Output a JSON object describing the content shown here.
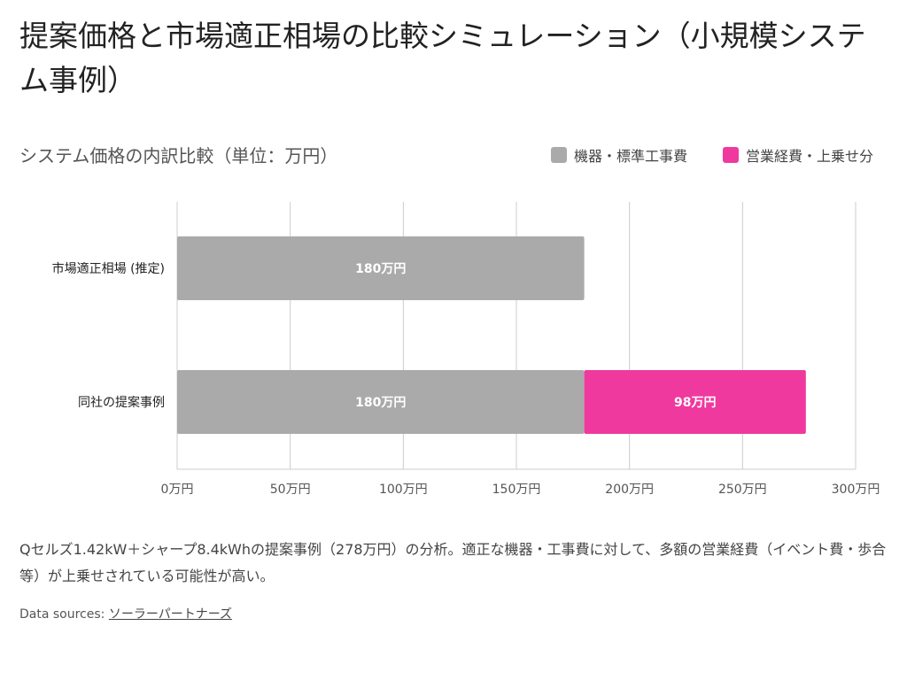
{
  "title": "提案価格と市場適正相場の比較シミュレーション（小規模システム事例）",
  "description": "Qセルズ1.42kW＋シャープ8.4kWhの提案事例（278万円）の分析。適正な機器・工事費に対して、多額の営業経費（イベント費・歩合等）が上乗せされている可能性が高い。",
  "sources": {
    "label": "Data sources:",
    "link": "ソーラーパートナーズ"
  },
  "chart_data": {
    "type": "bar",
    "orientation": "horizontal",
    "stacked": true,
    "title": "システム価格の内訳比較（単位：万円）",
    "categories": [
      "市場適正相場 (推定)",
      "同社の提案事例"
    ],
    "series": [
      {
        "name": "機器・標準工事費",
        "color": "#aaaaaa",
        "values": [
          180,
          180
        ],
        "labels": [
          "180万円",
          "180万円"
        ]
      },
      {
        "name": "営業経費・上乗せ分",
        "color": "#f0399e",
        "values": [
          0,
          98
        ],
        "labels": [
          "",
          "98万円"
        ]
      }
    ],
    "xlim": [
      0,
      300
    ],
    "xticks": [
      0,
      50,
      100,
      150,
      200,
      250,
      300
    ],
    "xtick_labels": [
      "0万円",
      "50万円",
      "100万円",
      "150万円",
      "200万円",
      "250万円",
      "300万円"
    ],
    "grid": true,
    "legend": "top-right"
  }
}
